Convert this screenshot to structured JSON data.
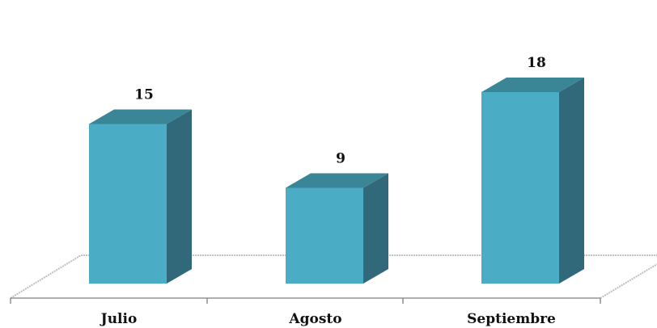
{
  "chart_data": {
    "type": "bar",
    "categories": [
      "Julio",
      "Agosto",
      "Septiembre"
    ],
    "values": [
      15,
      9,
      18
    ],
    "title": "",
    "xlabel": "",
    "ylabel": "",
    "ylim": [
      0,
      18
    ],
    "grid": false,
    "legend": "none",
    "three_d": true,
    "colors": {
      "front": "#4BACC6",
      "side": "#31697A",
      "top": "#3A8697",
      "floor": "#BFBFBF",
      "axis": "#7F7F7F"
    }
  }
}
